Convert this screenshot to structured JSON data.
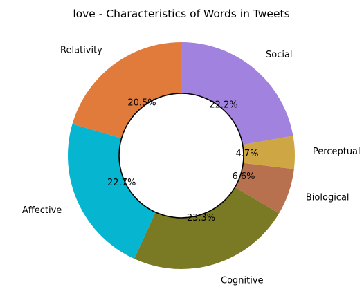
{
  "chart_data": {
    "type": "pie",
    "variant": "donut",
    "title": "love - Characteristics of Words in Tweets",
    "start_angle_deg": 90,
    "direction": "counterclockwise",
    "slices": [
      {
        "label": "Relativity",
        "value": 20.5,
        "pct_label": "20.5%",
        "color": "#e07b3c"
      },
      {
        "label": "Affective",
        "value": 22.7,
        "pct_label": "22.7%",
        "color": "#06b6d1"
      },
      {
        "label": "Cognitive",
        "value": 23.3,
        "pct_label": "23.3%",
        "color": "#7a7a25"
      },
      {
        "label": "Biological",
        "value": 6.6,
        "pct_label": "6.6%",
        "color": "#b8714f"
      },
      {
        "label": "Perceptual",
        "value": 4.7,
        "pct_label": "4.7%",
        "color": "#cfa644"
      },
      {
        "label": "Social",
        "value": 22.2,
        "pct_label": "22.2%",
        "color": "#a182df"
      }
    ],
    "center_hole": {
      "fill": "#ffffff",
      "stroke": "#000000"
    }
  }
}
